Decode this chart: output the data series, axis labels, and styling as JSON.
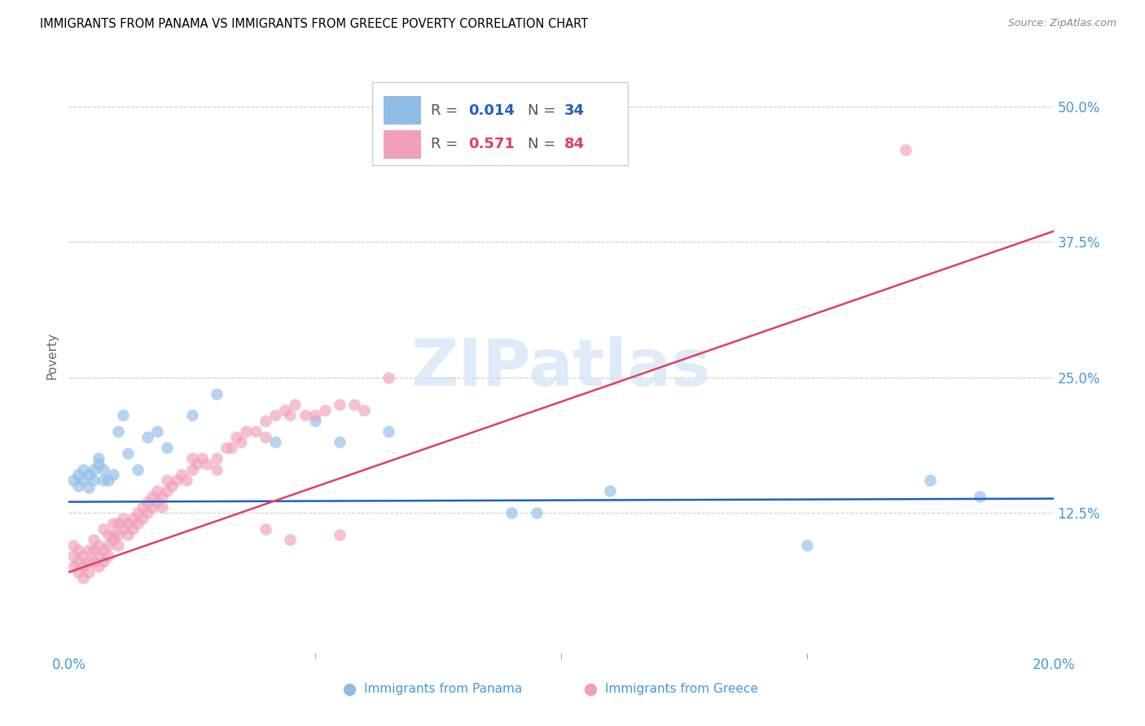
{
  "title": "IMMIGRANTS FROM PANAMA VS IMMIGRANTS FROM GREECE POVERTY CORRELATION CHART",
  "source": "Source: ZipAtlas.com",
  "ylabel": "Poverty",
  "ytick_labels": [
    "50.0%",
    "37.5%",
    "25.0%",
    "12.5%"
  ],
  "ytick_values": [
    0.5,
    0.375,
    0.25,
    0.125
  ],
  "xlim": [
    0.0,
    0.2
  ],
  "ylim": [
    -0.005,
    0.545
  ],
  "R_panama": 0.014,
  "N_panama": 34,
  "R_greece": 0.571,
  "N_greece": 84,
  "color_panama": "#90bce8",
  "color_greece": "#f0a0b8",
  "line_color_panama": "#2060c0",
  "line_color_greece": "#e04060",
  "watermark": "ZIPatlas",
  "pan_x": [
    0.001,
    0.002,
    0.002,
    0.003,
    0.003,
    0.004,
    0.004,
    0.005,
    0.005,
    0.006,
    0.006,
    0.007,
    0.007,
    0.008,
    0.009,
    0.01,
    0.011,
    0.012,
    0.014,
    0.016,
    0.018,
    0.02,
    0.025,
    0.03,
    0.042,
    0.05,
    0.055,
    0.065,
    0.09,
    0.095,
    0.11,
    0.15,
    0.175,
    0.185
  ],
  "pan_y": [
    0.155,
    0.16,
    0.15,
    0.155,
    0.165,
    0.148,
    0.16,
    0.155,
    0.165,
    0.17,
    0.175,
    0.155,
    0.165,
    0.155,
    0.16,
    0.2,
    0.215,
    0.18,
    0.165,
    0.195,
    0.2,
    0.185,
    0.215,
    0.235,
    0.19,
    0.21,
    0.19,
    0.2,
    0.125,
    0.125,
    0.145,
    0.095,
    0.155,
    0.14
  ],
  "gre_x": [
    0.001,
    0.001,
    0.001,
    0.002,
    0.002,
    0.002,
    0.003,
    0.003,
    0.003,
    0.004,
    0.004,
    0.004,
    0.005,
    0.005,
    0.005,
    0.006,
    0.006,
    0.006,
    0.007,
    0.007,
    0.007,
    0.008,
    0.008,
    0.008,
    0.009,
    0.009,
    0.009,
    0.01,
    0.01,
    0.01,
    0.011,
    0.011,
    0.012,
    0.012,
    0.013,
    0.013,
    0.014,
    0.014,
    0.015,
    0.015,
    0.016,
    0.016,
    0.017,
    0.017,
    0.018,
    0.018,
    0.019,
    0.019,
    0.02,
    0.02,
    0.021,
    0.022,
    0.023,
    0.024,
    0.025,
    0.025,
    0.026,
    0.027,
    0.028,
    0.03,
    0.03,
    0.032,
    0.033,
    0.034,
    0.035,
    0.036,
    0.038,
    0.04,
    0.04,
    0.042,
    0.044,
    0.045,
    0.046,
    0.048,
    0.05,
    0.052,
    0.055,
    0.058,
    0.06,
    0.065,
    0.04,
    0.045,
    0.055,
    0.17
  ],
  "gre_y": [
    0.095,
    0.085,
    0.075,
    0.09,
    0.08,
    0.07,
    0.085,
    0.075,
    0.065,
    0.09,
    0.08,
    0.07,
    0.1,
    0.09,
    0.08,
    0.095,
    0.085,
    0.075,
    0.09,
    0.08,
    0.11,
    0.105,
    0.095,
    0.085,
    0.1,
    0.115,
    0.105,
    0.115,
    0.105,
    0.095,
    0.11,
    0.12,
    0.105,
    0.115,
    0.11,
    0.12,
    0.115,
    0.125,
    0.13,
    0.12,
    0.125,
    0.135,
    0.13,
    0.14,
    0.135,
    0.145,
    0.13,
    0.14,
    0.145,
    0.155,
    0.15,
    0.155,
    0.16,
    0.155,
    0.165,
    0.175,
    0.17,
    0.175,
    0.17,
    0.165,
    0.175,
    0.185,
    0.185,
    0.195,
    0.19,
    0.2,
    0.2,
    0.21,
    0.195,
    0.215,
    0.22,
    0.215,
    0.225,
    0.215,
    0.215,
    0.22,
    0.225,
    0.225,
    0.22,
    0.25,
    0.11,
    0.1,
    0.105,
    0.46
  ],
  "line_pan_x0": 0.0,
  "line_pan_x1": 0.2,
  "line_pan_y0": 0.135,
  "line_pan_y1": 0.138,
  "line_gre_x0": 0.0,
  "line_gre_x1": 0.2,
  "line_gre_y0": 0.07,
  "line_gre_y1": 0.385
}
